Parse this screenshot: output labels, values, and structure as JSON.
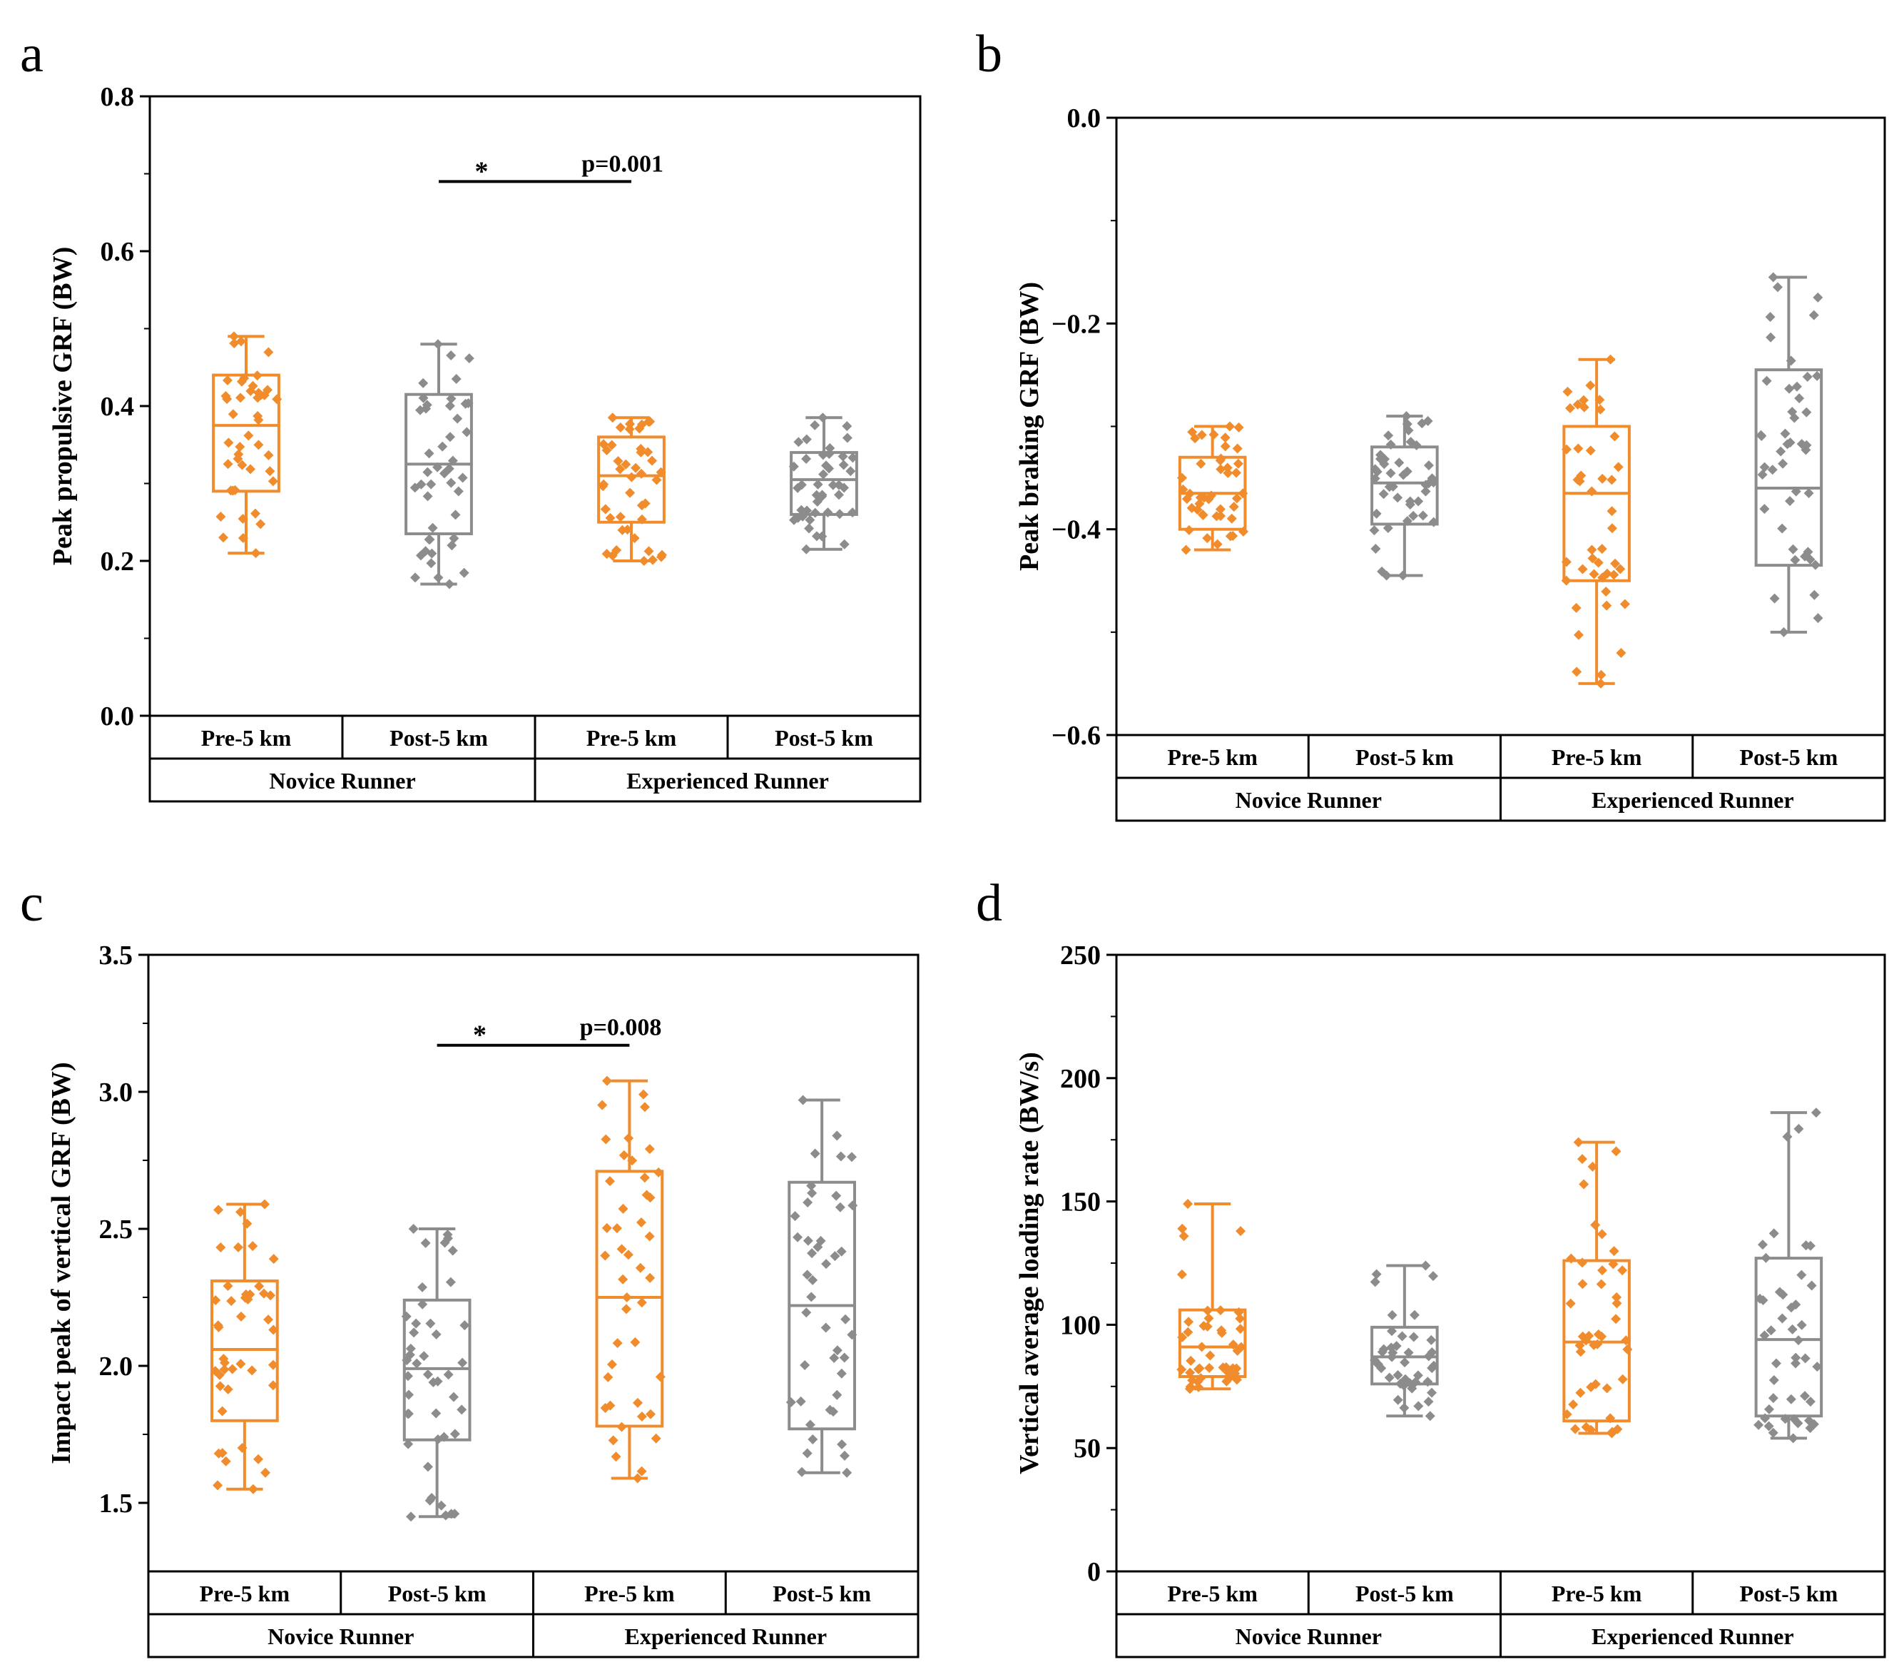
{
  "colors": {
    "pre": "#f08c2c",
    "post": "#8c8c8c",
    "axis": "#000000"
  },
  "groups": [
    "Novice Runner",
    "Experienced Runner"
  ],
  "conditions": [
    "Pre-5 km",
    "Post-5 km",
    "Pre-5 km",
    "Post-5 km"
  ],
  "chart_data": [
    {
      "panel": "a",
      "type": "box",
      "ylabel": "Peak propulsive GRF (BW)",
      "ylim": [
        0.0,
        0.8
      ],
      "yticks": [
        "0.0",
        "0.2",
        "0.4",
        "0.6",
        "0.8"
      ],
      "ytick_values": [
        0.0,
        0.2,
        0.4,
        0.6,
        0.8
      ],
      "boxes": [
        {
          "label": "Pre-5 km",
          "group": "Novice Runner",
          "min": 0.21,
          "q1": 0.29,
          "median": 0.375,
          "q3": 0.44,
          "max": 0.49
        },
        {
          "label": "Post-5 km",
          "group": "Novice Runner",
          "min": 0.17,
          "q1": 0.235,
          "median": 0.325,
          "q3": 0.415,
          "max": 0.48
        },
        {
          "label": "Pre-5 km",
          "group": "Experienced Runner",
          "min": 0.2,
          "q1": 0.25,
          "median": 0.31,
          "q3": 0.36,
          "max": 0.385
        },
        {
          "label": "Post-5 km",
          "group": "Experienced Runner",
          "min": 0.215,
          "q1": 0.26,
          "median": 0.305,
          "q3": 0.34,
          "max": 0.385
        }
      ],
      "significance": {
        "from": 1,
        "to": 2,
        "y": 0.69,
        "star": "*",
        "p": "p=0.001"
      }
    },
    {
      "panel": "b",
      "type": "box",
      "ylabel": "Peak braking GRF (BW)",
      "ylim": [
        -0.6,
        0.0
      ],
      "yticks": [
        "−0.6",
        "−0.4",
        "−0.2",
        "0.0"
      ],
      "ytick_values": [
        -0.6,
        -0.4,
        -0.2,
        0.0
      ],
      "boxes": [
        {
          "label": "Pre-5 km",
          "group": "Novice Runner",
          "min": -0.42,
          "q1": -0.4,
          "median": -0.365,
          "q3": -0.33,
          "max": -0.3
        },
        {
          "label": "Post-5 km",
          "group": "Novice Runner",
          "min": -0.445,
          "q1": -0.395,
          "median": -0.355,
          "q3": -0.32,
          "max": -0.29
        },
        {
          "label": "Pre-5 km",
          "group": "Experienced Runner",
          "min": -0.55,
          "q1": -0.45,
          "median": -0.365,
          "q3": -0.3,
          "max": -0.235
        },
        {
          "label": "Post-5 km",
          "group": "Experienced Runner",
          "min": -0.5,
          "q1": -0.435,
          "median": -0.36,
          "q3": -0.245,
          "max": -0.155
        }
      ]
    },
    {
      "panel": "c",
      "type": "box",
      "ylabel": "Impact peak of vertical GRF (BW)",
      "ylim": [
        1.25,
        3.5
      ],
      "yticks": [
        "1.5",
        "2.0",
        "2.5",
        "3.0",
        "3.5"
      ],
      "ytick_values": [
        1.5,
        2.0,
        2.5,
        3.0,
        3.5
      ],
      "boxes": [
        {
          "label": "Pre-5 km",
          "group": "Novice Runner",
          "min": 1.55,
          "q1": 1.8,
          "median": 2.06,
          "q3": 2.31,
          "max": 2.59
        },
        {
          "label": "Post-5 km",
          "group": "Novice Runner",
          "min": 1.45,
          "q1": 1.73,
          "median": 1.99,
          "q3": 2.24,
          "max": 2.5
        },
        {
          "label": "Pre-5 km",
          "group": "Experienced Runner",
          "min": 1.59,
          "q1": 1.78,
          "median": 2.25,
          "q3": 2.71,
          "max": 3.04
        },
        {
          "label": "Post-5 km",
          "group": "Experienced Runner",
          "min": 1.61,
          "q1": 1.77,
          "median": 2.22,
          "q3": 2.67,
          "max": 2.97
        }
      ],
      "significance": {
        "from": 1,
        "to": 2,
        "y": 3.17,
        "star": "*",
        "p": "p=0.008"
      }
    },
    {
      "panel": "d",
      "type": "box",
      "ylabel": "Vertical average loading rate (BW/s)",
      "ylim": [
        0,
        250
      ],
      "yticks": [
        "0",
        "50",
        "100",
        "150",
        "200",
        "250"
      ],
      "ytick_values": [
        0,
        50,
        100,
        150,
        200,
        250
      ],
      "boxes": [
        {
          "label": "Pre-5 km",
          "group": "Novice Runner",
          "min": 74,
          "q1": 79,
          "median": 91,
          "q3": 106,
          "max": 149
        },
        {
          "label": "Post-5 km",
          "group": "Novice Runner",
          "min": 63,
          "q1": 76,
          "median": 87,
          "q3": 99,
          "max": 124
        },
        {
          "label": "Pre-5 km",
          "group": "Experienced Runner",
          "min": 56,
          "q1": 61,
          "median": 93,
          "q3": 126,
          "max": 174
        },
        {
          "label": "Post-5 km",
          "group": "Experienced Runner",
          "min": 54,
          "q1": 63,
          "median": 94,
          "q3": 127,
          "max": 186
        }
      ]
    }
  ]
}
